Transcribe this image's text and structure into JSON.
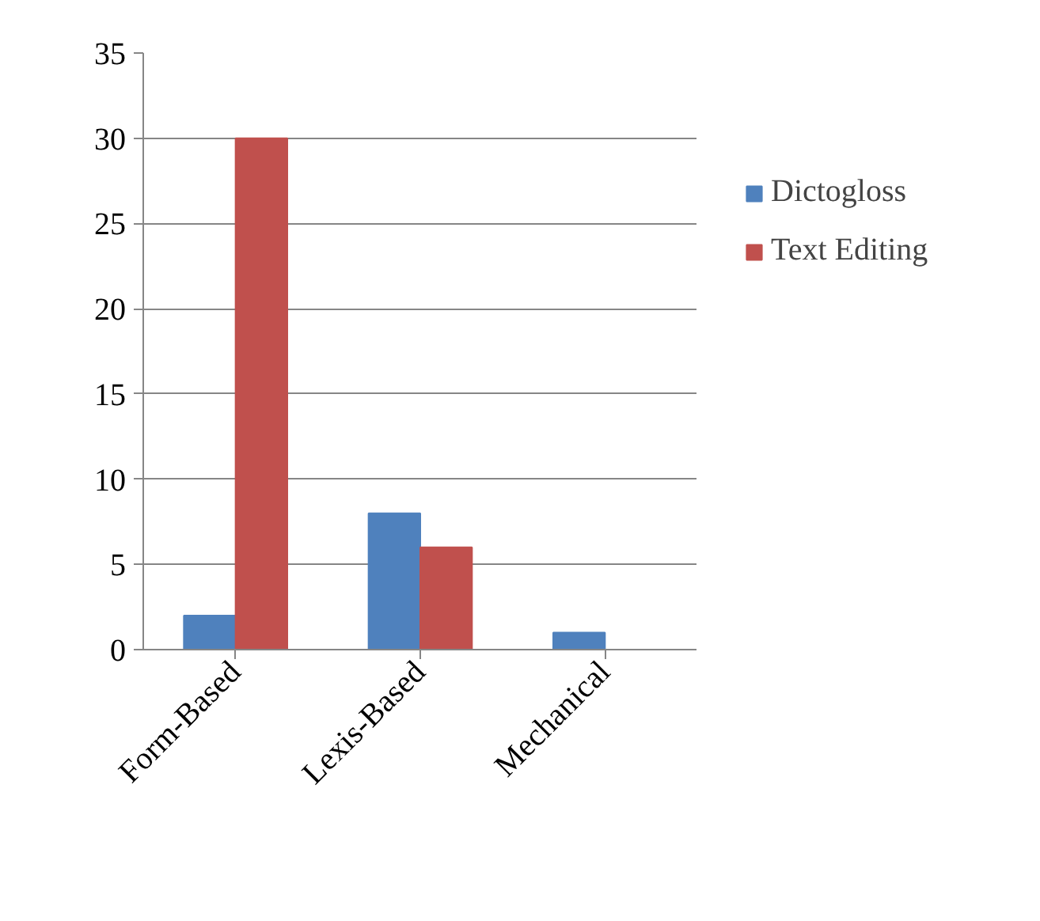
{
  "chart_data": {
    "type": "bar",
    "categories": [
      "Form-Based",
      "Lexis-Based",
      "Mechanical"
    ],
    "series": [
      {
        "name": "Dictogloss",
        "color": "#4f81bd",
        "values": [
          2,
          8,
          1
        ]
      },
      {
        "name": "Text Editing",
        "color": "#c0504d",
        "values": [
          30,
          6,
          0
        ]
      }
    ],
    "ylim": [
      0,
      35
    ],
    "yticks": [
      0,
      5,
      10,
      15,
      20,
      25,
      30,
      35
    ],
    "grid": "y",
    "legend": "right"
  }
}
